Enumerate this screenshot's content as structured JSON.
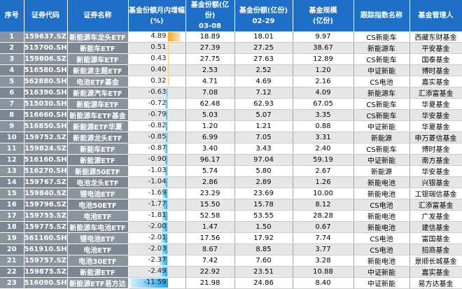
{
  "headers": {
    "no": "序号",
    "code": "证券代码",
    "name": "证券名称",
    "change": "基金份额月内增幅",
    "change_unit": "(%)",
    "shares_0308": "基金份额(亿份)",
    "date_0308": "03-08",
    "shares_0229": "基金份额(亿份)",
    "date_0229": "02-29",
    "scale": "基金规模",
    "scale_unit": "(亿份)",
    "index": "跟踪指数名称",
    "manager": "基金管理人"
  },
  "colors": {
    "header": "#1e6fc8",
    "positive_bar": "#f6a623",
    "negative_bar": "#1fa5ea"
  },
  "rows": [
    {
      "no": "1",
      "code": "159637.SZ",
      "name": "新能源车龙头ETF",
      "change": "4.89",
      "s0308": "18.89",
      "s0229": "18.01",
      "scale": "9.97",
      "index": "CS新能车",
      "manager": "西藏东财基金"
    },
    {
      "no": "2",
      "code": "515700.SH",
      "name": "新能车ETF",
      "change": "0.51",
      "s0308": "27.39",
      "s0229": "27.25",
      "scale": "38.67",
      "index": "新能源车",
      "manager": "平安基金"
    },
    {
      "no": "3",
      "code": "159806.SZ",
      "name": "新能源车ETF",
      "change": "0.43",
      "s0308": "27.75",
      "s0229": "27.63",
      "scale": "12.89",
      "index": "CS新能车",
      "manager": "国泰基金"
    },
    {
      "no": "4",
      "code": "516580.SH",
      "name": "新能源主题ETF",
      "change": "0.40",
      "s0308": "2.53",
      "s0229": "2.52",
      "scale": "1.20",
      "index": "中证新能",
      "manager": "博时基金"
    },
    {
      "no": "5",
      "code": "562880.SH",
      "name": "电池ETF基金",
      "change": "0.32",
      "s0308": "4.71",
      "s0229": "4.69",
      "scale": "2.16",
      "index": "CS电池",
      "manager": "嘉实基金"
    },
    {
      "no": "6",
      "code": "516390.SH",
      "name": "新能源汽车ETF",
      "change": "-0.63",
      "s0308": "7.08",
      "s0229": "7.12",
      "scale": "4.09",
      "index": "新能源车",
      "manager": "汇添富基金"
    },
    {
      "no": "7",
      "code": "515030.SH",
      "name": "新能源车ETF",
      "change": "-0.72",
      "s0308": "62.48",
      "s0229": "62.93",
      "scale": "67.05",
      "index": "CS新能车",
      "manager": "华夏基金"
    },
    {
      "no": "8",
      "code": "516660.SH",
      "name": "新能源车ETF基金",
      "change": "-0.79",
      "s0308": "5.03",
      "s0229": "5.07",
      "scale": "3.35",
      "index": "CS新能车",
      "manager": "华安基金"
    },
    {
      "no": "9",
      "code": "516850.SH",
      "name": "新能源ETF华夏",
      "change": "-0.82",
      "s0308": "1.20",
      "s0229": "1.21",
      "scale": "0.88",
      "index": "中证新能",
      "manager": "华夏基金"
    },
    {
      "no": "10",
      "code": "159752.SZ",
      "name": "新能源龙头ETF",
      "change": "-0.85",
      "s0308": "6.99",
      "s0229": "7.05",
      "scale": "3.31",
      "index": "新能源",
      "manager": "申万菱信基金"
    },
    {
      "no": "11",
      "code": "159824.SZ",
      "name": "新能车ETF",
      "change": "-0.87",
      "s0308": "3.40",
      "s0229": "3.43",
      "scale": "2.40",
      "index": "CS新能车",
      "manager": "博时基金"
    },
    {
      "no": "12",
      "code": "516160.SH",
      "name": "新能源ETF",
      "change": "-0.90",
      "s0308": "96.17",
      "s0229": "97.04",
      "scale": "59.19",
      "index": "中证新能",
      "manager": "南方基金"
    },
    {
      "no": "13",
      "code": "516270.SH",
      "name": "新能源50ETF",
      "change": "-1.03",
      "s0308": "5.74",
      "s0229": "5.80",
      "scale": "2.67",
      "index": "新能源",
      "manager": "华安基金"
    },
    {
      "no": "14",
      "code": "159767.SZ",
      "name": "电池龙头ETF",
      "change": "-1.04",
      "s0308": "2.86",
      "s0229": "2.89",
      "scale": "1.26",
      "index": "新能电池",
      "manager": "兴银基金"
    },
    {
      "no": "15",
      "code": "159840.SZ",
      "name": "锂电池ETF",
      "change": "-1.69",
      "s0308": "23.29",
      "s0229": "23.69",
      "scale": "10.00",
      "index": "新能电池",
      "manager": "工银瑞信基金"
    },
    {
      "no": "16",
      "code": "159796.SZ",
      "name": "电池50ETF",
      "change": "-1.77",
      "s0308": "15.50",
      "s0229": "15.78",
      "scale": "8.12",
      "index": "CS电池",
      "manager": "汇添富基金"
    },
    {
      "no": "17",
      "code": "159755.SZ",
      "name": "电池ETF",
      "change": "-1.81",
      "s0308": "52.58",
      "s0229": "53.55",
      "scale": "28.28",
      "index": "新能电池",
      "manager": "广发基金"
    },
    {
      "no": "18",
      "code": "159775.SZ",
      "name": "新能源车电池ETF",
      "change": "-2.00",
      "s0308": "1.47",
      "s0229": "1.50",
      "scale": "0.67",
      "index": "新能电池",
      "manager": "建信基金"
    },
    {
      "no": "19",
      "code": "561160.SH",
      "name": "锂电池ETF",
      "change": "-2.01",
      "s0308": "17.56",
      "s0229": "17.92",
      "scale": "7.74",
      "index": "CS电池",
      "manager": "富国基金"
    },
    {
      "no": "20",
      "code": "561910.SH",
      "name": "电池ETF",
      "change": "-2.03",
      "s0308": "8.67",
      "s0229": "8.85",
      "scale": "3.77",
      "index": "CS电池",
      "manager": "招商基金"
    },
    {
      "no": "21",
      "code": "159757.SZ",
      "name": "电池30ETF",
      "change": "-2.37",
      "s0308": "7.42",
      "s0229": "7.60",
      "scale": "3.28",
      "index": "新能电池",
      "manager": "景顺长城基金"
    },
    {
      "no": "22",
      "code": "159875.SZ",
      "name": "新能源ETF",
      "change": "-2.49",
      "s0308": "22.92",
      "s0229": "23.51",
      "scale": "10.88",
      "index": "中证新能",
      "manager": "嘉实基金"
    },
    {
      "no": "23",
      "code": "516090.SH",
      "name": "新能源ETF易方达",
      "change": "-11.59",
      "s0308": "21.98",
      "s0229": "24.86",
      "scale": "8.40",
      "index": "中证新能",
      "manager": "易方达基金"
    }
  ]
}
